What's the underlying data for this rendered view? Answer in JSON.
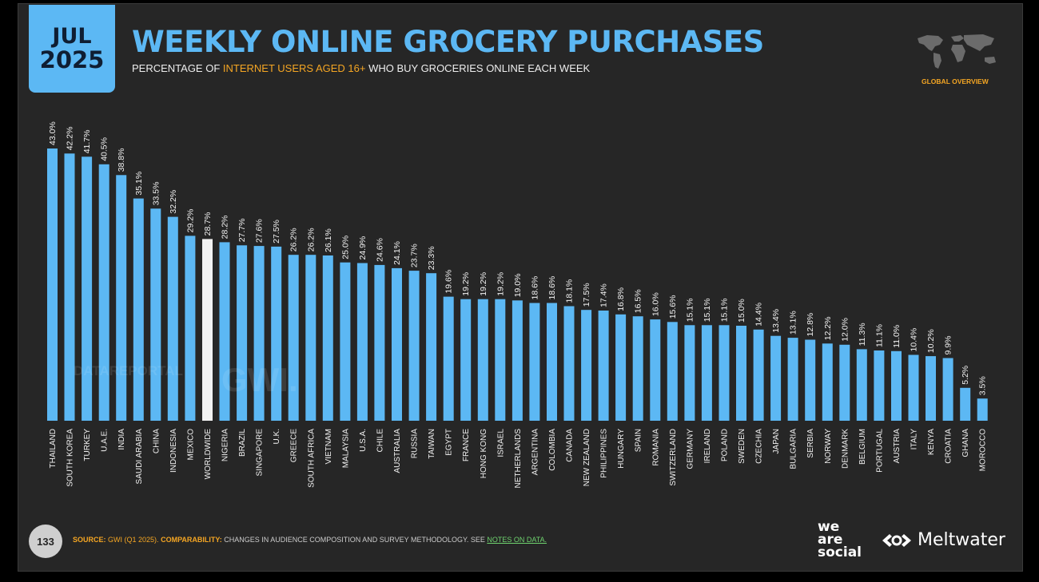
{
  "date": {
    "month": "JUL",
    "year": "2025"
  },
  "title": "WEEKLY ONLINE GROCERY PURCHASES",
  "subtitle": {
    "part1": "PERCENTAGE OF ",
    "highlight": "INTERNET USERS AGED 16+",
    "part2": " WHO BUY GROCERIES ONLINE EACH WEEK"
  },
  "map_label": "GLOBAL OVERVIEW",
  "page_number": "133",
  "footer": {
    "source_label": "SOURCE:",
    "source_value": "GWI (Q1 2025).",
    "comparability_label": "COMPARABILITY:",
    "comparability_text": "CHANGES IN AUDIENCE COMPOSITION AND SURVEY METHODOLOGY. SEE",
    "notes_link": "NOTES ON DATA."
  },
  "brands": {
    "was_line1": "we",
    "was_line2": "are",
    "was_line3": "social",
    "meltwater": "Meltwater"
  },
  "watermarks": {
    "datareportal": "DATAREPORTAL",
    "gwi": "GWI."
  },
  "colors": {
    "bar": "#5cb8f4",
    "highlight_bar": "#f2f2f2",
    "accent": "#f5a623",
    "background": "#262626"
  },
  "chart_data": {
    "type": "bar",
    "categories": [
      "THAILAND",
      "SOUTH KOREA",
      "TURKEY",
      "U.A.E.",
      "INDIA",
      "SAUDI ARABIA",
      "CHINA",
      "INDONESIA",
      "MEXICO",
      "WORLDWIDE",
      "NIGERIA",
      "BRAZIL",
      "SINGAPORE",
      "U.K.",
      "GREECE",
      "SOUTH AFRICA",
      "VIETNAM",
      "MALAYSIA",
      "U.S.A.",
      "CHILE",
      "AUSTRALIA",
      "RUSSIA",
      "TAIWAN",
      "EGYPT",
      "FRANCE",
      "HONG KONG",
      "ISRAEL",
      "NETHERLANDS",
      "ARGENTINA",
      "COLOMBIA",
      "CANADA",
      "NEW ZEALAND",
      "PHILIPPINES",
      "HUNGARY",
      "SPAIN",
      "ROMANIA",
      "SWITZERLAND",
      "GERMANY",
      "IRELAND",
      "POLAND",
      "SWEDEN",
      "CZECHIA",
      "JAPAN",
      "BULGARIA",
      "SERBIA",
      "NORWAY",
      "DENMARK",
      "BELGIUM",
      "PORTUGAL",
      "AUSTRIA",
      "ITALY",
      "KENYA",
      "CROATIA",
      "GHANA",
      "MOROCCO"
    ],
    "values": [
      43.0,
      42.2,
      41.7,
      40.5,
      38.8,
      35.1,
      33.5,
      32.2,
      29.2,
      28.7,
      28.2,
      27.7,
      27.6,
      27.5,
      26.2,
      26.2,
      26.1,
      25.0,
      24.9,
      24.6,
      24.1,
      23.7,
      23.3,
      19.6,
      19.2,
      19.2,
      19.2,
      19.0,
      18.6,
      18.6,
      18.1,
      17.5,
      17.4,
      16.8,
      16.5,
      16.0,
      15.6,
      15.1,
      15.1,
      15.1,
      15.0,
      14.4,
      13.4,
      13.1,
      12.8,
      12.2,
      12.0,
      11.3,
      11.1,
      11.0,
      10.4,
      10.2,
      9.9,
      5.2,
      3.5
    ],
    "value_labels": [
      "43.0%",
      "42.2%",
      "41.7%",
      "40.5%",
      "38.8%",
      "35.1%",
      "33.5%",
      "32.2%",
      "29.2%",
      "28.7%",
      "28.2%",
      "27.7%",
      "27.6%",
      "27.5%",
      "26.2%",
      "26.2%",
      "26.1%",
      "25.0%",
      "24.9%",
      "24.6%",
      "24.1%",
      "23.7%",
      "23.3%",
      "19.6%",
      "19.2%",
      "19.2%",
      "19.2%",
      "19.0%",
      "18.6%",
      "18.6%",
      "18.1%",
      "17.5%",
      "17.4%",
      "16.8%",
      "16.5%",
      "16.0%",
      "15.6%",
      "15.1%",
      "15.1%",
      "15.1%",
      "15.0%",
      "14.4%",
      "13.4%",
      "13.1%",
      "12.8%",
      "12.2%",
      "12.0%",
      "11.3%",
      "11.1%",
      "11.0%",
      "10.4%",
      "10.2%",
      "9.9%",
      "5.2%",
      "3.5%"
    ],
    "highlight_category": "WORLDWIDE",
    "ylim": [
      0,
      43.0
    ],
    "grid": false,
    "legend": "none"
  }
}
